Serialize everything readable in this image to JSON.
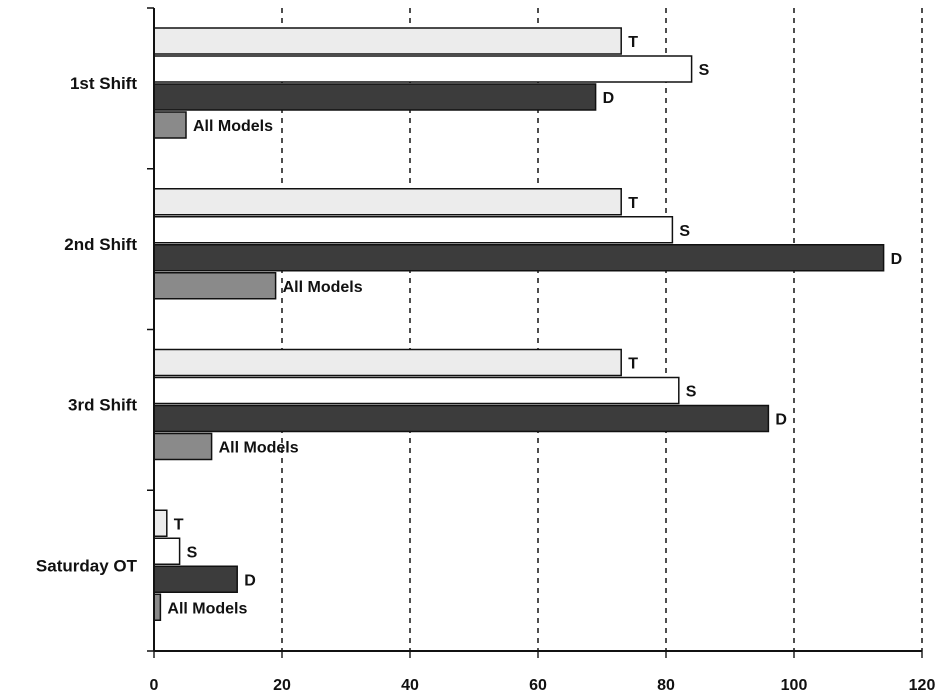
{
  "chart_data": {
    "type": "bar",
    "orientation": "horizontal",
    "categories": [
      "1st Shift",
      "2nd Shift",
      "3rd Shift",
      "Saturday OT"
    ],
    "series": [
      {
        "name": "T",
        "values": [
          73,
          73,
          73,
          2
        ],
        "color": "#ececec"
      },
      {
        "name": "S",
        "values": [
          84,
          81,
          82,
          4
        ],
        "color": "#ffffff"
      },
      {
        "name": "D",
        "values": [
          69,
          114,
          96,
          13
        ],
        "color": "#3c3c3c"
      },
      {
        "name": "All Models",
        "values": [
          5,
          19,
          9,
          1
        ],
        "color": "#8a8a8a"
      }
    ],
    "xlim": [
      0,
      120
    ],
    "xticks": [
      "0",
      "20",
      "40",
      "60",
      "80",
      "100",
      "120"
    ],
    "grid": "vertical dashed",
    "legend": "none",
    "xlabel": "",
    "ylabel": "",
    "title": ""
  }
}
